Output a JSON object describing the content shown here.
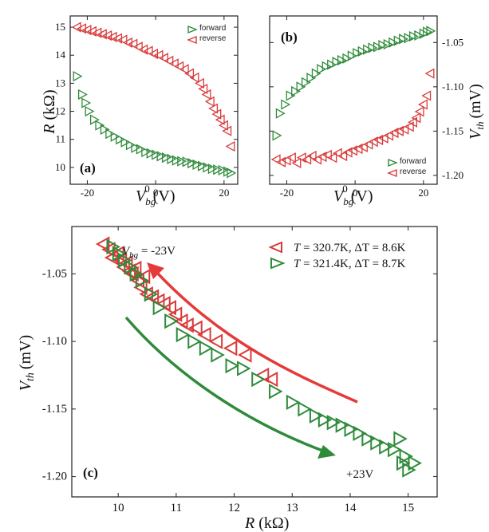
{
  "chart_data": [
    {
      "type": "scatter",
      "panel": "(a)",
      "xlabel": "V_bg^0 (V)",
      "ylabel": "R (kΩ)",
      "xlim": [
        -25,
        24
      ],
      "ylim": [
        9.4,
        15.4
      ],
      "xticks": [
        -20,
        0,
        20
      ],
      "yticks": [
        10,
        11,
        12,
        13,
        14,
        15
      ],
      "legend_position": "top-right",
      "series": [
        {
          "name": "forward",
          "color": "#2e8b3a",
          "marker": "triangle-right",
          "x": [
            -23,
            -21.5,
            -20.5,
            -19.5,
            -18,
            -16.5,
            -15,
            -13.5,
            -12,
            -10.5,
            -9,
            -7.5,
            -6,
            -4.5,
            -3,
            -1.5,
            0,
            1.5,
            3,
            4.5,
            6,
            7.5,
            9,
            10.5,
            12,
            13.5,
            15,
            16.5,
            18,
            19.5,
            21,
            22
          ],
          "y": [
            13.25,
            12.6,
            12.3,
            12.0,
            11.7,
            11.5,
            11.35,
            11.2,
            11.1,
            11.0,
            10.9,
            10.8,
            10.7,
            10.65,
            10.55,
            10.5,
            10.45,
            10.4,
            10.35,
            10.3,
            10.25,
            10.22,
            10.2,
            10.15,
            10.1,
            10.05,
            10.0,
            9.95,
            9.92,
            9.9,
            9.85,
            9.8
          ]
        },
        {
          "name": "reverse",
          "color": "#d93a3a",
          "marker": "triangle-left",
          "x": [
            -23,
            -21.5,
            -20,
            -18.5,
            -17,
            -15.5,
            -14,
            -12.5,
            -11,
            -9.5,
            -8,
            -6.5,
            -5,
            -3.5,
            -2,
            -0.5,
            1,
            2.5,
            4,
            5.5,
            7,
            8.5,
            10,
            11.5,
            13,
            14,
            15,
            16,
            17,
            18,
            19,
            20,
            21,
            22
          ],
          "y": [
            15.0,
            14.95,
            14.9,
            14.85,
            14.8,
            14.75,
            14.7,
            14.65,
            14.6,
            14.55,
            14.45,
            14.4,
            14.3,
            14.2,
            14.15,
            14.05,
            14.0,
            13.9,
            13.8,
            13.7,
            13.6,
            13.5,
            13.35,
            13.2,
            13.0,
            12.8,
            12.6,
            12.35,
            12.1,
            11.9,
            11.7,
            11.5,
            11.3,
            10.75
          ]
        }
      ]
    },
    {
      "type": "scatter",
      "panel": "(b)",
      "xlabel": "V_bg^0 (V)",
      "ylabel": "V_th (mV)",
      "xlim": [
        -25,
        24
      ],
      "ylim": [
        -1.21,
        -1.02
      ],
      "xticks": [
        -20,
        0,
        20
      ],
      "yticks": [
        -1.05,
        -1.1,
        -1.15,
        -1.2
      ],
      "legend_position": "bottom-right",
      "series": [
        {
          "name": "forward",
          "color": "#2e8b3a",
          "marker": "triangle-right",
          "x": [
            -23,
            -22,
            -20.5,
            -19,
            -17.5,
            -16,
            -14.5,
            -13,
            -11.5,
            -10,
            -8.5,
            -7,
            -5.5,
            -4,
            -2.5,
            -1,
            0.5,
            2,
            3.5,
            5,
            6.5,
            8,
            9.5,
            11,
            12.5,
            14,
            15.5,
            17,
            18.5,
            20,
            21,
            22
          ],
          "y": [
            -1.155,
            -1.13,
            -1.12,
            -1.11,
            -1.105,
            -1.1,
            -1.095,
            -1.09,
            -1.085,
            -1.08,
            -1.077,
            -1.075,
            -1.072,
            -1.07,
            -1.068,
            -1.065,
            -1.062,
            -1.06,
            -1.058,
            -1.056,
            -1.055,
            -1.053,
            -1.052,
            -1.05,
            -1.048,
            -1.046,
            -1.045,
            -1.043,
            -1.042,
            -1.04,
            -1.038,
            -1.037
          ]
        },
        {
          "name": "reverse",
          "color": "#d93a3a",
          "marker": "triangle-left",
          "x": [
            -23,
            -21.5,
            -20,
            -18.5,
            -17,
            -15.5,
            -14,
            -12.5,
            -11,
            -9.5,
            -8,
            -6.5,
            -5,
            -3.5,
            -2,
            -0.5,
            1,
            2.5,
            4,
            5.5,
            7,
            8.5,
            10,
            11.5,
            13,
            14.5,
            16,
            17,
            18,
            19,
            20,
            21,
            22
          ],
          "y": [
            -1.182,
            -1.185,
            -1.183,
            -1.18,
            -1.186,
            -1.18,
            -1.182,
            -1.178,
            -1.182,
            -1.179,
            -1.177,
            -1.18,
            -1.175,
            -1.178,
            -1.174,
            -1.172,
            -1.17,
            -1.168,
            -1.165,
            -1.162,
            -1.16,
            -1.158,
            -1.155,
            -1.152,
            -1.15,
            -1.148,
            -1.145,
            -1.14,
            -1.135,
            -1.128,
            -1.12,
            -1.11,
            -1.085
          ]
        }
      ]
    },
    {
      "type": "scatter",
      "panel": "(c)",
      "xlabel": "R (kΩ)",
      "ylabel": "V_th (mV)",
      "xlim": [
        9.2,
        15.5
      ],
      "ylim": [
        -1.215,
        -1.015
      ],
      "xticks": [
        10,
        11,
        12,
        13,
        14,
        15
      ],
      "yticks": [
        -1.05,
        -1.1,
        -1.15,
        -1.2
      ],
      "legend_position": "top-right",
      "annotations": {
        "start": "V_bg = -23V",
        "end": "+23V"
      },
      "series": [
        {
          "name": "T = 320.7K, ΔT = 8.6K",
          "color": "#d93a3a",
          "marker": "triangle-left",
          "x": [
            9.75,
            9.85,
            9.9,
            10.0,
            10.05,
            10.1,
            10.15,
            10.2,
            10.25,
            10.3,
            10.35,
            10.4,
            10.45,
            10.5,
            10.6,
            10.7,
            10.8,
            10.9,
            11.0,
            11.1,
            11.2,
            11.35,
            11.5,
            11.7,
            11.95,
            12.2,
            12.5,
            12.65
          ],
          "y": [
            -1.028,
            -1.032,
            -1.038,
            -1.035,
            -1.04,
            -1.045,
            -1.042,
            -1.048,
            -1.05,
            -1.046,
            -1.055,
            -1.06,
            -1.052,
            -1.065,
            -1.067,
            -1.07,
            -1.072,
            -1.075,
            -1.08,
            -1.085,
            -1.088,
            -1.09,
            -1.095,
            -1.1,
            -1.105,
            -1.11,
            -1.125,
            -1.128
          ]
        },
        {
          "name": "T = 321.4K, ΔT = 8.7K",
          "color": "#2e8b3a",
          "marker": "triangle-right",
          "x": [
            9.9,
            10.0,
            10.1,
            10.2,
            10.3,
            10.4,
            10.55,
            10.7,
            10.9,
            11.1,
            11.3,
            11.5,
            11.7,
            11.95,
            12.15,
            12.4,
            12.7,
            13.0,
            13.2,
            13.4,
            13.55,
            13.7,
            13.85,
            14.0,
            14.15,
            14.3,
            14.45,
            14.6,
            14.75,
            14.85,
            14.9,
            14.95,
            15.0,
            15.1
          ],
          "y": [
            -1.03,
            -1.035,
            -1.04,
            -1.045,
            -1.05,
            -1.055,
            -1.065,
            -1.075,
            -1.085,
            -1.095,
            -1.1,
            -1.105,
            -1.11,
            -1.118,
            -1.12,
            -1.128,
            -1.137,
            -1.145,
            -1.15,
            -1.155,
            -1.158,
            -1.16,
            -1.162,
            -1.165,
            -1.168,
            -1.172,
            -1.175,
            -1.178,
            -1.18,
            -1.172,
            -1.19,
            -1.185,
            -1.195,
            -1.19
          ]
        }
      ]
    }
  ],
  "labels": {
    "a": {
      "panel": "(a)",
      "y_main": "R",
      "y_unit": "(kΩ)",
      "x_main": "V",
      "x_sub": "bg",
      "x_sup": "0",
      "x_unit": "(V)",
      "legend_forward": "forward",
      "legend_reverse": "reverse"
    },
    "b": {
      "panel": "(b)",
      "y_main": "V",
      "y_sub": "th",
      "y_unit": "(mV)",
      "x_main": "V",
      "x_sub": "bg",
      "x_sup": "0",
      "x_unit": "(V)",
      "legend_forward": "forward",
      "legend_reverse": "reverse"
    },
    "c": {
      "panel": "(c)",
      "y_main": "V",
      "y_sub": "th",
      "y_unit": "(mV)",
      "x_main": "R",
      "x_unit": "(kΩ)",
      "ann_start_main": "V",
      "ann_start_sub": "bg",
      "ann_start_rest": " = -23V",
      "ann_end": "+23V",
      "leg1_t": "T",
      "leg1_rest": " = 320.7K, ΔT = 8.6K",
      "leg2_t": "T",
      "leg2_rest": " = 321.4K, ΔT = 8.7K"
    }
  }
}
